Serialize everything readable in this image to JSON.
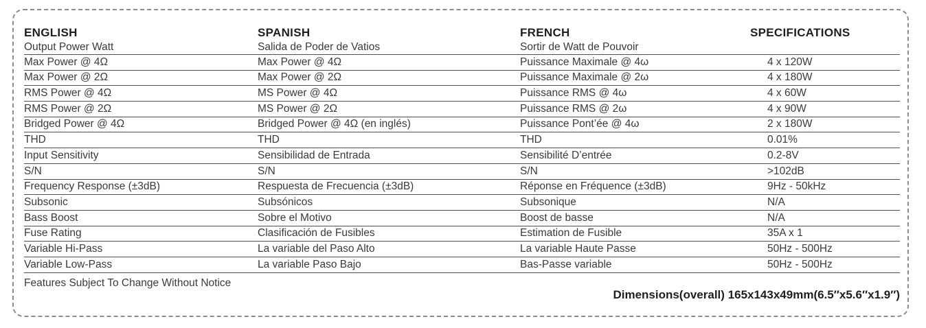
{
  "colors": {
    "background": "#ffffff",
    "text": "#3a3a3a",
    "heading": "#1f1f1f",
    "rule_line": "#4f4f4f",
    "dashed_border": "#8c8c8c"
  },
  "table": {
    "headers": [
      "ENGLISH",
      "SPANISH",
      "FRENCH",
      "SPECIFICATIONS"
    ],
    "subheader": {
      "english": "Output Power Watt",
      "spanish": "Salida de Poder de Vatios",
      "french": "Sortir de Watt de Pouvoir",
      "spec": ""
    },
    "rows": [
      {
        "english": "Max Power @ 4Ω",
        "spanish": "Max Power @ 4Ω",
        "french": "Puissance Maximale @ 4ω",
        "spec": "4 x 120W"
      },
      {
        "english": "Max Power @ 2Ω",
        "spanish": "Max Power @ 2Ω",
        "french": "Puissance Maximale @ 2ω",
        "spec": "4 x 180W"
      },
      {
        "english": "RMS Power @ 4Ω",
        "spanish": "MS Power @ 4Ω",
        "french": "Puissance RMS @ 4ω",
        "spec": "4 x 60W"
      },
      {
        "english": "RMS Power @ 2Ω",
        "spanish": "MS Power @ 2Ω",
        "french": "Puissance RMS @ 2ω",
        "spec": "4 x 90W"
      },
      {
        "english": "Bridged Power @ 4Ω",
        "spanish": "Bridged Power @ 4Ω (en inglés)",
        "french": "Puissance Pont’ée @ 4ω",
        "spec": "2 x 180W"
      },
      {
        "english": "THD",
        "spanish": "THD",
        "french": "THD",
        "spec": "0.01%"
      },
      {
        "english": "Input Sensitivity",
        "spanish": "Sensibilidad de Entrada",
        "french": "Sensibilité D’entrée",
        "spec": "0.2-8V"
      },
      {
        "english": "S/N",
        "spanish": "S/N",
        "french": "S/N",
        "spec": ">102dB"
      },
      {
        "english": "Frequency Response (±3dB)",
        "spanish": "Respuesta de Frecuencia (±3dB)",
        "french": "Réponse en Fréquence (±3dB)",
        "spec": "9Hz - 50kHz"
      },
      {
        "english": "Subsonic",
        "spanish": "Subsónicos",
        "french": "Subsonique",
        "spec": "N/A"
      },
      {
        "english": "Bass Boost",
        "spanish": "Sobre el Motivo",
        "french": "Boost de basse",
        "spec": "N/A"
      },
      {
        "english": "Fuse Rating",
        "spanish": "Clasificación de Fusibles",
        "french": "Estimation de Fusible",
        "spec": "35A x 1"
      },
      {
        "english": "Variable Hi-Pass",
        "spanish": "La variable del Paso Alto",
        "french": "La variable Haute Passe",
        "spec": "50Hz - 500Hz"
      },
      {
        "english": "Variable Low-Pass",
        "spanish": "La variable Paso Bajo",
        "french": "Bas-Passe variable",
        "spec": "50Hz - 500Hz"
      }
    ]
  },
  "footer": {
    "note": "Features Subject To Change Without Notice",
    "dimensions": "Dimensions(overall) 165x143x49mm(6.5″x5.6″x1.9″)"
  }
}
